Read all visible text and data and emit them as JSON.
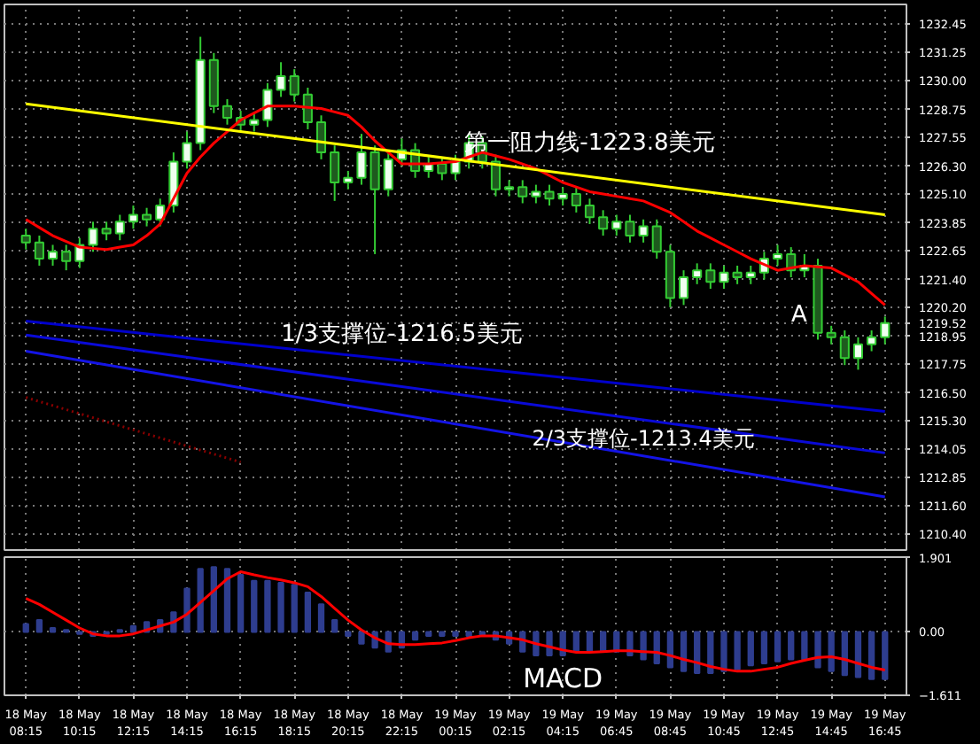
{
  "chart_data": [
    {
      "type": "candlestick",
      "grid": true,
      "tick_labels": "y",
      "categories": [
        "18 May 08:15",
        null,
        null,
        null,
        "18 May 10:15",
        null,
        null,
        null,
        "18 May 12:15",
        null,
        null,
        null,
        "18 May 14:15",
        null,
        null,
        null,
        "18 May 16:15",
        null,
        null,
        null,
        "18 May 18:15",
        null,
        null,
        null,
        "18 May 20:15",
        null,
        null,
        null,
        "18 May 22:15",
        null,
        null,
        null,
        "19 May 00:15",
        null,
        null,
        null,
        "19 May 02:15",
        null,
        null,
        null,
        "19 May 04:15",
        null,
        null,
        null,
        "19 May 06:45",
        null,
        null,
        null,
        "19 May 08:45",
        null,
        null,
        null,
        "19 May 10:45",
        null,
        null,
        null,
        "19 May 12:45",
        null,
        null,
        null,
        "19 May 14:45",
        null,
        null,
        null,
        "19 May 16:45"
      ],
      "ohlc": [
        [
          1223.3,
          1223.6,
          1222.7,
          1223.0
        ],
        [
          1223.0,
          1223.3,
          1222.0,
          1222.3
        ],
        [
          1222.3,
          1222.9,
          1222.0,
          1222.6
        ],
        [
          1222.6,
          1222.9,
          1221.8,
          1222.2
        ],
        [
          1222.2,
          1223.2,
          1221.9,
          1222.9
        ],
        [
          1222.9,
          1223.9,
          1222.6,
          1223.6
        ],
        [
          1223.6,
          1223.9,
          1223.1,
          1223.4
        ],
        [
          1223.4,
          1224.2,
          1223.1,
          1223.9
        ],
        [
          1223.9,
          1224.6,
          1223.6,
          1224.2
        ],
        [
          1224.2,
          1224.5,
          1223.7,
          1224.0
        ],
        [
          1224.0,
          1224.9,
          1223.7,
          1224.6
        ],
        [
          1224.6,
          1226.9,
          1224.3,
          1226.5
        ],
        [
          1226.5,
          1227.8,
          1226.2,
          1227.3
        ],
        [
          1227.3,
          1231.9,
          1227.0,
          1230.9
        ],
        [
          1230.9,
          1231.2,
          1228.6,
          1228.9
        ],
        [
          1228.9,
          1229.2,
          1228.1,
          1228.4
        ],
        [
          1228.4,
          1228.7,
          1227.8,
          1228.1
        ],
        [
          1228.1,
          1228.6,
          1227.8,
          1228.3
        ],
        [
          1228.3,
          1229.9,
          1228.0,
          1229.6
        ],
        [
          1229.6,
          1230.8,
          1229.3,
          1230.2
        ],
        [
          1230.2,
          1230.5,
          1229.1,
          1229.4
        ],
        [
          1229.4,
          1229.7,
          1227.9,
          1228.2
        ],
        [
          1228.2,
          1228.5,
          1226.6,
          1226.9
        ],
        [
          1226.9,
          1227.2,
          1224.8,
          1225.6
        ],
        [
          1225.6,
          1226.1,
          1225.3,
          1225.8
        ],
        [
          1225.8,
          1227.7,
          1225.5,
          1226.9
        ],
        [
          1226.9,
          1227.2,
          1222.5,
          1225.3
        ],
        [
          1225.3,
          1226.9,
          1225.0,
          1226.6
        ],
        [
          1226.6,
          1227.5,
          1226.3,
          1227.0
        ],
        [
          1227.0,
          1227.3,
          1225.8,
          1226.1
        ],
        [
          1226.1,
          1226.7,
          1225.8,
          1226.4
        ],
        [
          1226.4,
          1226.7,
          1225.7,
          1226.0
        ],
        [
          1226.0,
          1226.8,
          1225.7,
          1226.5
        ],
        [
          1226.5,
          1227.7,
          1226.2,
          1227.3
        ],
        [
          1227.3,
          1227.6,
          1226.2,
          1226.5
        ],
        [
          1226.5,
          1226.8,
          1225.0,
          1225.3
        ],
        [
          1225.3,
          1225.7,
          1225.0,
          1225.4
        ],
        [
          1225.4,
          1225.7,
          1224.7,
          1225.0
        ],
        [
          1225.0,
          1225.5,
          1224.7,
          1225.2
        ],
        [
          1225.2,
          1225.5,
          1224.6,
          1224.9
        ],
        [
          1224.9,
          1225.4,
          1224.6,
          1225.1
        ],
        [
          1225.1,
          1225.4,
          1224.3,
          1224.6
        ],
        [
          1224.6,
          1224.9,
          1223.8,
          1224.1
        ],
        [
          1224.1,
          1224.4,
          1223.3,
          1223.6
        ],
        [
          1223.6,
          1224.2,
          1223.3,
          1223.9
        ],
        [
          1223.9,
          1224.2,
          1223.0,
          1223.3
        ],
        [
          1223.3,
          1224.0,
          1223.0,
          1223.7
        ],
        [
          1223.7,
          1224.0,
          1222.3,
          1222.6
        ],
        [
          1222.6,
          1222.9,
          1220.2,
          1220.6
        ],
        [
          1220.6,
          1221.8,
          1220.3,
          1221.5
        ],
        [
          1221.5,
          1222.1,
          1221.2,
          1221.8
        ],
        [
          1221.8,
          1222.1,
          1221.0,
          1221.3
        ],
        [
          1221.3,
          1222.0,
          1221.0,
          1221.7
        ],
        [
          1221.7,
          1222.0,
          1221.2,
          1221.5
        ],
        [
          1221.5,
          1222.0,
          1221.2,
          1221.7
        ],
        [
          1221.7,
          1222.6,
          1221.4,
          1222.3
        ],
        [
          1222.3,
          1222.9,
          1222.0,
          1222.5
        ],
        [
          1222.5,
          1222.8,
          1221.5,
          1221.8
        ],
        [
          1221.8,
          1222.5,
          1221.5,
          1222.0
        ],
        [
          1222.0,
          1222.3,
          1218.8,
          1219.1
        ],
        [
          1219.1,
          1219.4,
          1218.6,
          1218.9
        ],
        [
          1218.9,
          1219.2,
          1217.7,
          1218.0
        ],
        [
          1218.0,
          1218.9,
          1217.5,
          1218.6
        ],
        [
          1218.6,
          1219.2,
          1218.3,
          1218.9
        ],
        [
          1218.9,
          1219.8,
          1218.6,
          1219.52
        ]
      ],
      "series": [
        {
          "type": "line",
          "color": "#ff0000",
          "values": [
            1224.0,
            1223.65,
            1223.3,
            1223.05,
            1222.8,
            1222.75,
            1222.7,
            1222.8,
            1222.9,
            1223.3,
            1223.8,
            1224.9,
            1226.0,
            1226.7,
            1227.3,
            1227.8,
            1228.3,
            1228.6,
            1228.9,
            1228.9,
            1228.9,
            1228.85,
            1228.8,
            1228.65,
            1228.5,
            1228.0,
            1227.4,
            1226.9,
            1226.4,
            1226.4,
            1226.4,
            1226.45,
            1226.5,
            1226.7,
            1226.9,
            1226.75,
            1226.6,
            1226.4,
            1226.2,
            1225.9,
            1225.6,
            1225.4,
            1225.2,
            1225.1,
            1225.0,
            1224.9,
            1224.8,
            1224.55,
            1224.3,
            1223.9,
            1223.5,
            1223.2,
            1222.9,
            1222.6,
            1222.3,
            1222.05,
            1221.8,
            1221.9,
            1222.0,
            1221.95,
            1221.9,
            1221.6,
            1221.3,
            1220.8,
            1220.3
          ]
        },
        {
          "type": "line",
          "color": "#ffff00",
          "x": [
            "18 May 08:15",
            "19 May 16:45"
          ],
          "values": [
            1229.0,
            1224.2
          ]
        },
        {
          "type": "line",
          "color": "#0000cc",
          "x": [
            "18 May 08:15",
            "19 May 16:45"
          ],
          "values": [
            1219.6,
            1215.7
          ]
        },
        {
          "type": "line",
          "color": "#0a0ad8",
          "x": [
            "18 May 08:15",
            "19 May 16:45"
          ],
          "values": [
            1219.0,
            1213.9
          ]
        },
        {
          "type": "line",
          "color": "#1414e6",
          "x": [
            "18 May 08:15",
            "19 May 16:45"
          ],
          "values": [
            1218.3,
            1212.0
          ]
        },
        {
          "type": "line",
          "color": "#8b0000",
          "line_style": "dotted",
          "x": [
            "18 May 08:15",
            "18 May 16:15"
          ],
          "values": [
            1216.3,
            1213.5
          ]
        }
      ],
      "ylim": [
        1209.7,
        1233.3
      ],
      "yticks": [
        1232.45,
        1231.25,
        {
          "value": 1230.0,
          "label": "1230.00"
        },
        1228.75,
        1227.55,
        {
          "value": 1226.3,
          "label": "1226.30"
        },
        {
          "value": 1225.1,
          "label": "1225.10"
        },
        1223.85,
        1222.65,
        {
          "value": 1221.4,
          "label": "1221.40"
        },
        {
          "value": 1220.2,
          "label": "1220.20"
        },
        1219.52,
        1218.95,
        1217.75,
        {
          "value": 1216.5,
          "label": "1216.50"
        },
        {
          "value": 1215.3,
          "label": "1215.30"
        },
        1214.05,
        1212.85,
        {
          "value": 1211.6,
          "label": "1211.60"
        },
        {
          "value": 1210.4,
          "label": "1210.40"
        }
      ],
      "annotations": [
        "第一阻力线-1223.8美元",
        "1/3支撑位-1216.5美元",
        "2/3支撑位-1213.4美元",
        "A"
      ]
    },
    {
      "type": "bar",
      "grid": true,
      "categories": [
        "18 May 08:15",
        null,
        null,
        null,
        "18 May 10:15",
        null,
        null,
        null,
        "18 May 12:15",
        null,
        null,
        null,
        "18 May 14:15",
        null,
        null,
        null,
        "18 May 16:15",
        null,
        null,
        null,
        "18 May 18:15",
        null,
        null,
        null,
        "18 May 20:15",
        null,
        null,
        null,
        "18 May 22:15",
        null,
        null,
        null,
        "19 May 00:15",
        null,
        null,
        null,
        "19 May 02:15",
        null,
        null,
        null,
        "19 May 04:15",
        null,
        null,
        null,
        "19 May 06:45",
        null,
        null,
        null,
        "19 May 08:45",
        null,
        null,
        null,
        "19 May 10:45",
        null,
        null,
        null,
        "19 May 12:45",
        null,
        null,
        null,
        "19 May 14:45",
        null,
        null,
        null,
        "19 May 16:45"
      ],
      "series": [
        {
          "type": "bar",
          "color": "#2e3d8f",
          "values": [
            0.2,
            0.3,
            0.1,
            0.05,
            -0.05,
            -0.1,
            -0.05,
            0.05,
            0.15,
            0.25,
            0.3,
            0.5,
            1.1,
            1.6,
            1.65,
            1.6,
            1.45,
            1.3,
            1.3,
            1.25,
            1.2,
            1.0,
            0.7,
            0.3,
            -0.1,
            -0.3,
            -0.4,
            -0.5,
            -0.4,
            -0.2,
            -0.1,
            -0.1,
            -0.1,
            -0.1,
            -0.1,
            -0.2,
            -0.3,
            -0.5,
            -0.6,
            -0.6,
            -0.6,
            -0.5,
            -0.5,
            -0.5,
            -0.5,
            -0.6,
            -0.7,
            -0.8,
            -0.9,
            -1.0,
            -1.05,
            -1.05,
            -1.0,
            -0.95,
            -0.85,
            -0.8,
            -0.75,
            -0.7,
            -0.7,
            -0.9,
            -1.0,
            -1.1,
            -1.15,
            -1.2,
            -1.2
          ]
        },
        {
          "type": "line",
          "color": "#ff0000",
          "values": [
            0.85,
            0.7,
            0.5,
            0.3,
            0.1,
            -0.05,
            -0.1,
            -0.1,
            -0.05,
            0.05,
            0.15,
            0.25,
            0.45,
            0.75,
            1.05,
            1.35,
            1.53,
            1.45,
            1.38,
            1.32,
            1.25,
            1.15,
            0.9,
            0.6,
            0.3,
            0.05,
            -0.15,
            -0.3,
            -0.32,
            -0.32,
            -0.3,
            -0.28,
            -0.22,
            -0.15,
            -0.1,
            -0.1,
            -0.15,
            -0.2,
            -0.3,
            -0.38,
            -0.46,
            -0.52,
            -0.52,
            -0.5,
            -0.48,
            -0.48,
            -0.5,
            -0.52,
            -0.6,
            -0.7,
            -0.78,
            -0.88,
            -0.95,
            -1.0,
            -1.0,
            -0.95,
            -0.9,
            -0.8,
            -0.72,
            -0.65,
            -0.63,
            -0.7,
            -0.8,
            -0.9,
            -0.97
          ]
        }
      ],
      "ylim": [
        -1.611,
        1.901
      ],
      "yticks": [
        1.901,
        {
          "value": 0,
          "label": "0.00"
        },
        -1.611
      ],
      "annotations": [
        "MACD"
      ]
    }
  ]
}
